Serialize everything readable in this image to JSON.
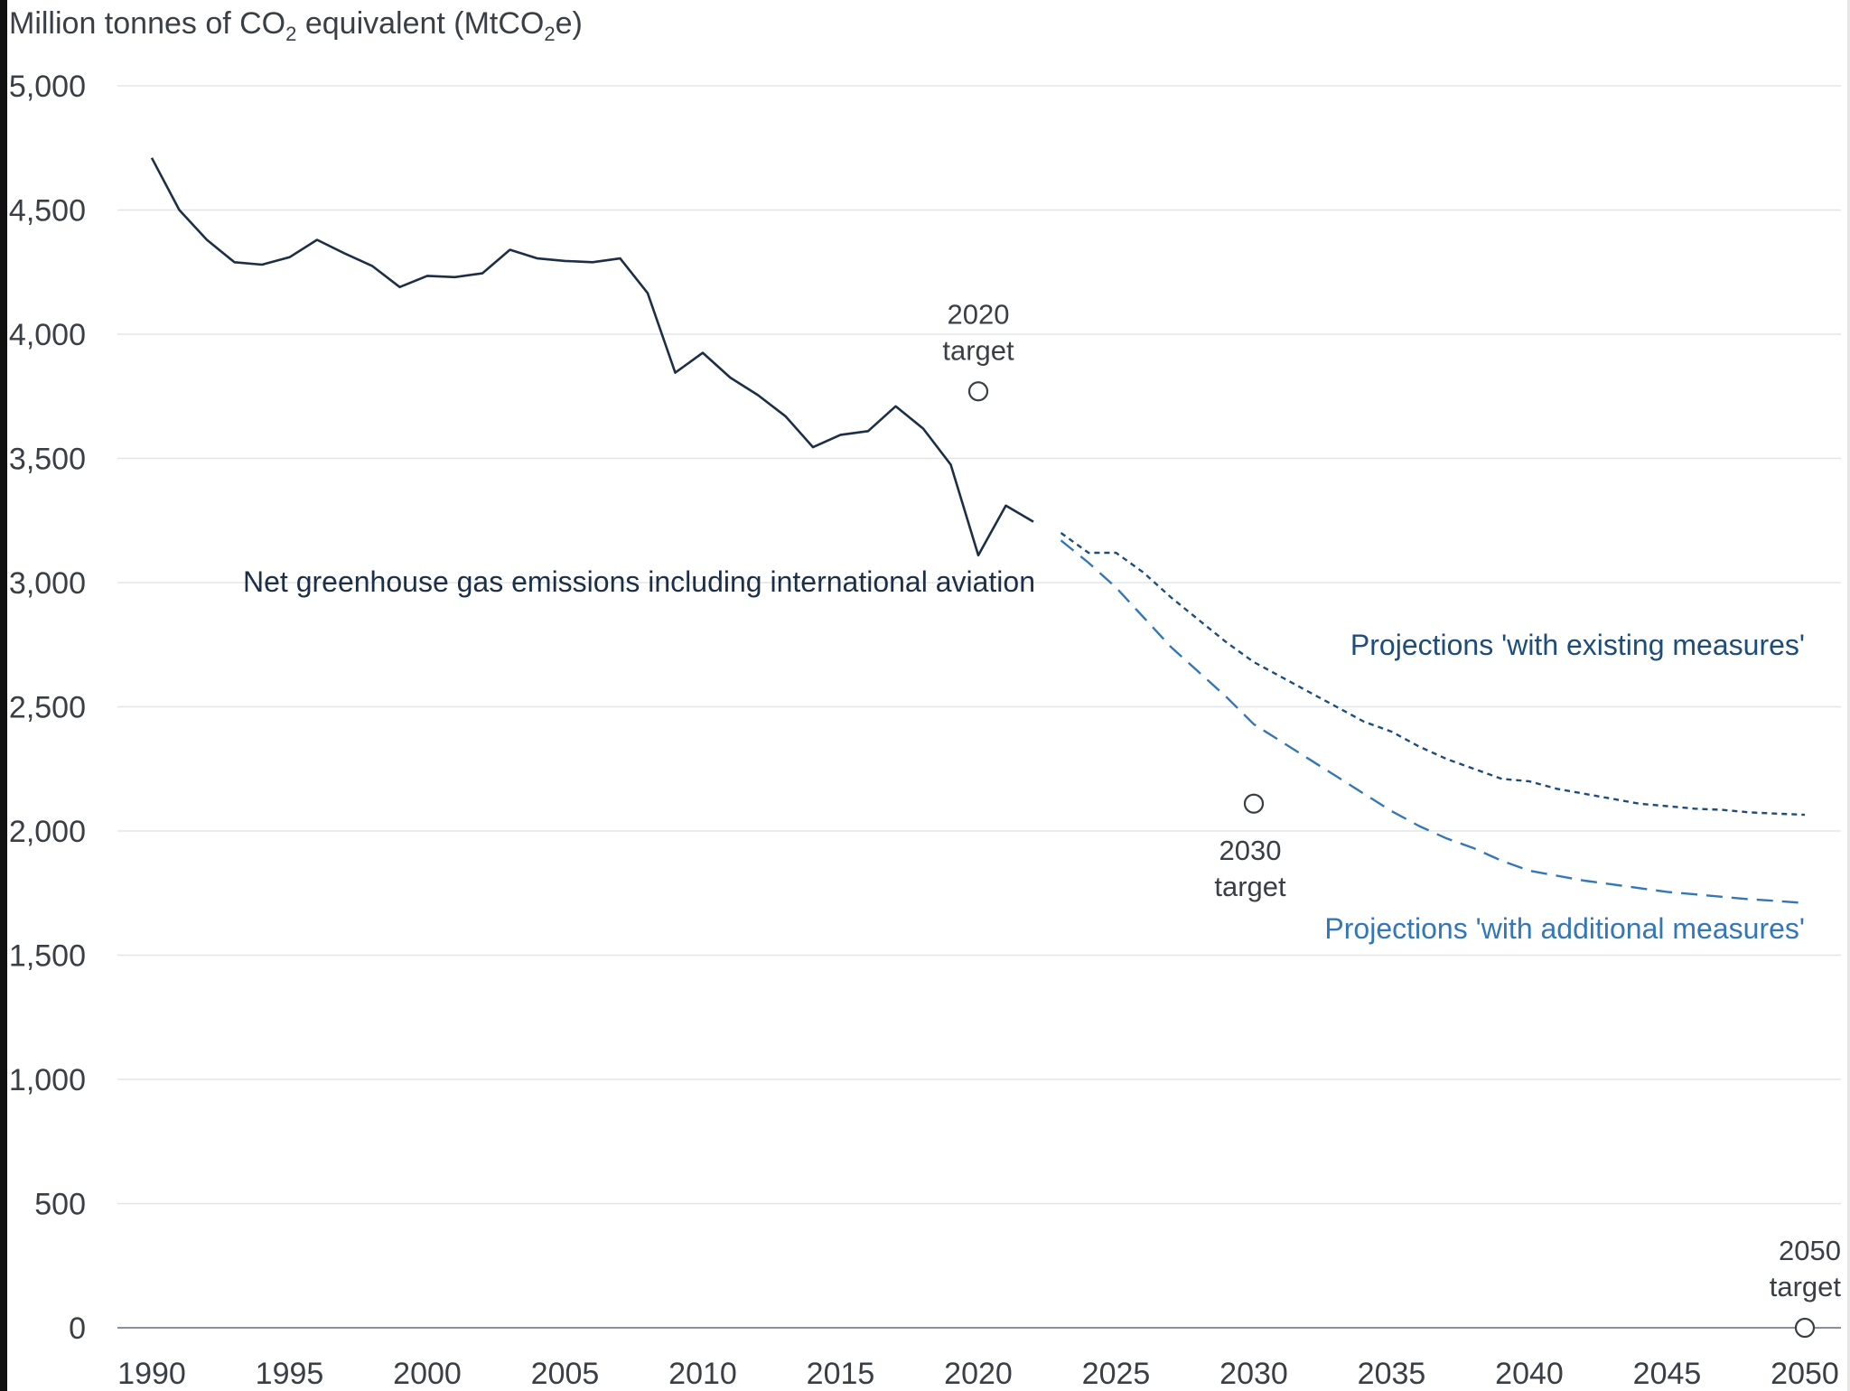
{
  "chart_data": {
    "type": "line",
    "ylabel_parts": {
      "pre": "Million tonnes of CO",
      "sub1": "2",
      "mid": " equivalent (MtCO",
      "sub2": "2",
      "post": "e)"
    },
    "ylim": [
      0,
      5000
    ],
    "xlim": [
      1990,
      2050
    ],
    "yticks": [
      0,
      500,
      1000,
      1500,
      2000,
      2500,
      3000,
      3500,
      4000,
      4500,
      5000
    ],
    "ytick_labels": [
      "0",
      "500",
      "1,000",
      "1,500",
      "2,000",
      "2,500",
      "3,000",
      "3,500",
      "4,000",
      "4,500",
      "5,000"
    ],
    "xticks": [
      1990,
      1995,
      2000,
      2005,
      2010,
      2015,
      2020,
      2025,
      2030,
      2035,
      2040,
      2045,
      2050
    ],
    "xtick_labels": [
      "1990",
      "1995",
      "2000",
      "2005",
      "2010",
      "2015",
      "2020",
      "2025",
      "2030",
      "2035",
      "2040",
      "2045",
      "2050"
    ],
    "grid": "horizontal",
    "series": [
      {
        "name": "Net greenhouse gas emissions including international aviation",
        "color": "#1d2f45",
        "style": "solid",
        "x": [
          1990,
          1991,
          1992,
          1993,
          1994,
          1995,
          1996,
          1997,
          1998,
          1999,
          2000,
          2001,
          2002,
          2003,
          2004,
          2005,
          2006,
          2007,
          2008,
          2009,
          2010,
          2011,
          2012,
          2013,
          2014,
          2015,
          2016,
          2017,
          2018,
          2019,
          2020,
          2021,
          2022
        ],
        "y": [
          4710,
          4500,
          4380,
          4290,
          4280,
          4310,
          4380,
          4325,
          4275,
          4190,
          4235,
          4230,
          4245,
          4340,
          4305,
          4295,
          4290,
          4305,
          4165,
          3845,
          3925,
          3825,
          3755,
          3670,
          3545,
          3595,
          3610,
          3710,
          3620,
          3475,
          3110,
          3310,
          3245
        ]
      },
      {
        "name": "Projections 'with existing measures'",
        "color": "#1e4d7a",
        "style": "dotted",
        "x": [
          2023,
          2024,
          2025,
          2026,
          2027,
          2028,
          2029,
          2030,
          2031,
          2032,
          2033,
          2034,
          2035,
          2036,
          2037,
          2038,
          2039,
          2040,
          2041,
          2042,
          2043,
          2044,
          2045,
          2046,
          2047,
          2048,
          2049,
          2050
        ],
        "y": [
          3200,
          3120,
          3120,
          3040,
          2940,
          2850,
          2760,
          2680,
          2620,
          2560,
          2500,
          2440,
          2400,
          2340,
          2290,
          2250,
          2210,
          2200,
          2170,
          2150,
          2130,
          2110,
          2100,
          2090,
          2085,
          2075,
          2070,
          2065
        ]
      },
      {
        "name": "Projections 'with additional measures'",
        "color": "#3377b8",
        "style": "dashed",
        "x": [
          2023,
          2024,
          2025,
          2026,
          2027,
          2028,
          2029,
          2030,
          2031,
          2032,
          2033,
          2034,
          2035,
          2036,
          2037,
          2038,
          2039,
          2040,
          2041,
          2042,
          2043,
          2044,
          2045,
          2046,
          2047,
          2048,
          2049,
          2050
        ],
        "y": [
          3170,
          3080,
          2980,
          2860,
          2740,
          2640,
          2540,
          2430,
          2360,
          2290,
          2220,
          2150,
          2080,
          2020,
          1970,
          1930,
          1880,
          1840,
          1820,
          1800,
          1785,
          1770,
          1755,
          1745,
          1735,
          1725,
          1718,
          1710
        ]
      }
    ],
    "targets": [
      {
        "label_line1": "2020",
        "label_line2": "target",
        "x": 2020,
        "y": 3770
      },
      {
        "label_line1": "2030",
        "label_line2": "target",
        "x": 2030,
        "y": 2110
      },
      {
        "label_line1": "2050",
        "label_line2": "target",
        "x": 2050,
        "y": 0
      }
    ]
  }
}
